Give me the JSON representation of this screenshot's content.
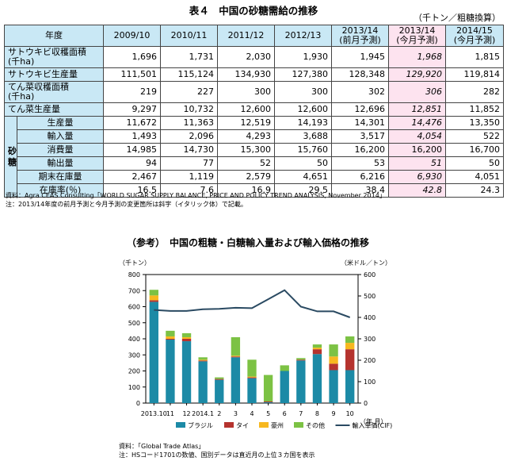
{
  "table": {
    "title": "表４　中国の砂糖需給の推移",
    "unit": "（千トン／粗糖換算）",
    "header": [
      "年度",
      "2009/10",
      "2010/11",
      "2011/12",
      "2012/13",
      "2013/14\n(前月予測)",
      "2013/14\n(今月予測)",
      "2014/15\n(今月予測)"
    ],
    "forecast_col": 5,
    "side_label": "砂\n糖",
    "rows": [
      {
        "label": "サトウキビ収穫面積\n(千ha)",
        "values": [
          "1,696",
          "1,731",
          "2,030",
          "1,930",
          "1,945",
          "1,968",
          "1,815"
        ],
        "tall": true
      },
      {
        "label": "サトウキビ生産量",
        "values": [
          "111,501",
          "115,124",
          "134,930",
          "127,380",
          "128,348",
          "129,920",
          "119,814"
        ]
      },
      {
        "label": "てん菜収穫面積\n(千ha)",
        "values": [
          "219",
          "227",
          "300",
          "300",
          "302",
          "306",
          "282"
        ],
        "tall": true
      },
      {
        "label": "てん菜生産量",
        "values": [
          "9,297",
          "10,732",
          "12,600",
          "12,600",
          "12,696",
          "12,851",
          "11,852"
        ]
      },
      {
        "label": "生産量",
        "values": [
          "11,672",
          "11,363",
          "12,519",
          "14,193",
          "14,301",
          "14,476",
          "13,350"
        ],
        "sugar": true
      },
      {
        "label": "輸入量",
        "values": [
          "1,493",
          "2,096",
          "4,293",
          "3,688",
          "3,517",
          "4,054",
          "522"
        ],
        "sugar": true
      },
      {
        "label": "消費量",
        "values": [
          "14,985",
          "14,730",
          "15,300",
          "15,760",
          "16,200",
          "16,200",
          "16,700"
        ],
        "sugar": true,
        "no_italic": true
      },
      {
        "label": "輸出量",
        "values": [
          "94",
          "77",
          "52",
          "50",
          "53",
          "51",
          "50"
        ],
        "sugar": true
      },
      {
        "label": "期末在庫量",
        "values": [
          "2,467",
          "1,119",
          "2,579",
          "4,651",
          "6,216",
          "6,930",
          "4,051"
        ],
        "sugar": true
      },
      {
        "label": "在庫率(％)",
        "values": [
          "16.5",
          "7.6",
          "16.9",
          "29.5",
          "38.4",
          "42.8",
          "24.3"
        ],
        "sugar": true
      }
    ],
    "source": "資料：Agra CEAS Consulting「WORLD SUGAR SUPPLY BALANCE, PRICE AND POLICY TREND ANALYSIS, November 2014」",
    "note": "注：2013/14年度の前月予測と今月予測の変更箇所は斜字（イタリック体）で記載。"
  },
  "chart_section_title": "（参考）　中国の粗糖・白糖輸入量および輸入価格の推移",
  "chart_data": {
    "type": "bar",
    "stacked": true,
    "categories": [
      "2013.10",
      "11",
      "12",
      "2014.1",
      "2",
      "3",
      "4",
      "5",
      "6",
      "7",
      "8",
      "9",
      "10"
    ],
    "x_tick_labels": [
      "2013.10",
      "11",
      "12",
      "2014.1",
      "2",
      "3",
      "4",
      "5",
      "6",
      "7",
      "8",
      "9",
      "10"
    ],
    "xlabel": "（年.月）",
    "ylabel_left": "（千トン）",
    "ylabel_right": "（米ドル／トン）",
    "ylim_left": [
      0,
      800
    ],
    "yticks_left": [
      0,
      100,
      200,
      300,
      400,
      500,
      600,
      700,
      800
    ],
    "ylim_right": [
      0,
      600
    ],
    "yticks_right": [
      0,
      100,
      200,
      300,
      400,
      500,
      600
    ],
    "series": [
      {
        "name": "ブラジル",
        "color": "#1c8aa6",
        "values": [
          630,
          395,
          385,
          260,
          145,
          285,
          155,
          5,
          200,
          265,
          305,
          205,
          205
        ]
      },
      {
        "name": "タイ",
        "color": "#b5332e",
        "values": [
          10,
          5,
          15,
          5,
          5,
          5,
          5,
          5,
          0,
          5,
          30,
          40,
          130
        ]
      },
      {
        "name": "豪州",
        "color": "#f7b81f",
        "values": [
          30,
          15,
          10,
          5,
          0,
          5,
          5,
          0,
          0,
          0,
          10,
          45,
          40
        ]
      },
      {
        "name": "その他",
        "color": "#7cc244",
        "values": [
          35,
          35,
          25,
          15,
          10,
          115,
          105,
          165,
          35,
          10,
          20,
          75,
          40
        ]
      }
    ],
    "line": {
      "name": "輸入単価(CIF)",
      "color": "#2a4a62",
      "values": [
        435,
        430,
        430,
        438,
        440,
        445,
        443,
        485,
        527,
        450,
        428,
        428,
        400
      ]
    },
    "legend_position": "bottom",
    "grid": false,
    "source": "資料：「Global Trade Atlas」",
    "note": "注：HSコード1701の数値、国別データは直近月の上位３カ国を表示"
  }
}
